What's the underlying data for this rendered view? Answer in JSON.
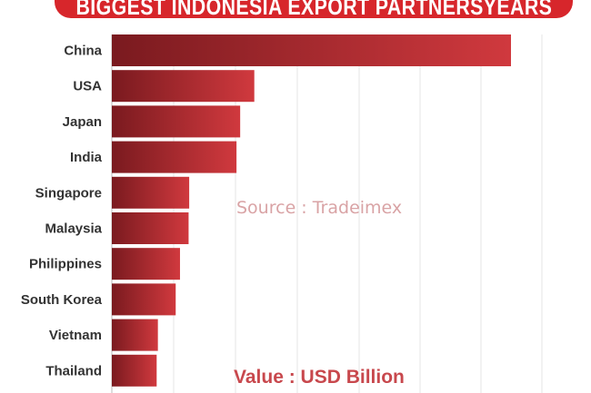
{
  "title": "BIGGEST INDONESIA EXPORT PARTNERSYEARS",
  "source_note": "Source : Tradeimex",
  "unit_note": "Value : USD Billion",
  "colors": {
    "bar_dark": "#7a1a1f",
    "bar_light": "#d0393e",
    "grid": "#e4e4e4",
    "banner": "#d7262b"
  },
  "chart_data": {
    "type": "bar",
    "orientation": "horizontal",
    "categories": [
      "China",
      "USA",
      "Japan",
      "India",
      "Singapore",
      "Malaysia",
      "Philippines",
      "South Korea",
      "Vietnam",
      "Thailand"
    ],
    "values": [
      65.0,
      23.2,
      20.9,
      20.3,
      12.6,
      12.5,
      11.1,
      10.4,
      7.5,
      7.3
    ],
    "title": "BIGGEST INDONESIA EXPORT PARTNERSYEARS",
    "xlabel": "Value : USD Billion",
    "ylabel": "",
    "xlim": [
      0,
      70
    ],
    "grid": true,
    "legend": "none"
  }
}
